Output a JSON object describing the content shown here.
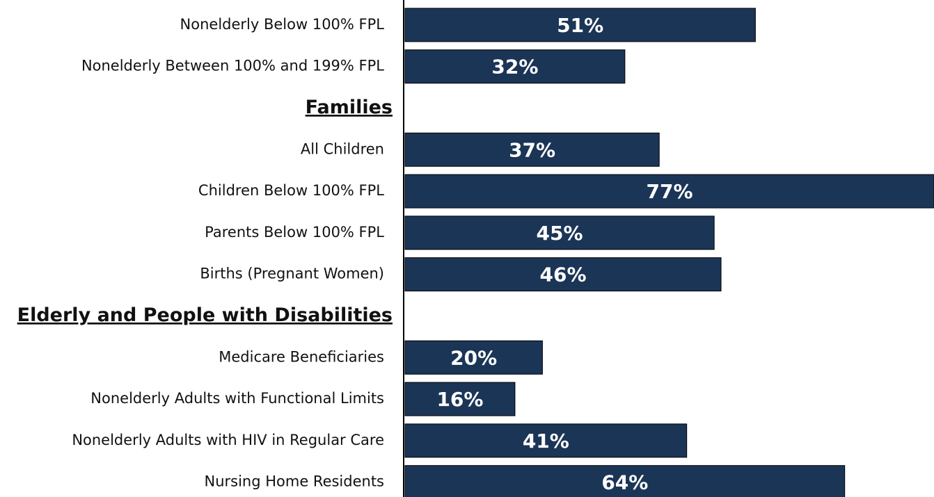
{
  "chart_data": {
    "type": "bar",
    "orientation": "horizontal",
    "categories": [
      "Nonelderly Below 100% FPL",
      "Nonelderly Between 100% and 199% FPL",
      "Families",
      "All Children",
      "Children Below 100% FPL",
      "Parents Below 100% FPL",
      "Births (Pregnant Women)",
      "Elderly and People with Disabilities",
      "Medicare Beneficiaries",
      "Nonelderly Adults with Functional Limits",
      "Nonelderly Adults with HIV in Regular Care",
      "Nursing Home Residents"
    ],
    "values": [
      51,
      32,
      null,
      37,
      77,
      45,
      46,
      null,
      20,
      16,
      41,
      64
    ],
    "value_labels": [
      "51%",
      "32%",
      null,
      "37%",
      "77%",
      "45%",
      "46%",
      null,
      "20%",
      "16%",
      "41%",
      "64%"
    ],
    "color": "#1b3557",
    "xlim": [
      0,
      77
    ]
  }
}
